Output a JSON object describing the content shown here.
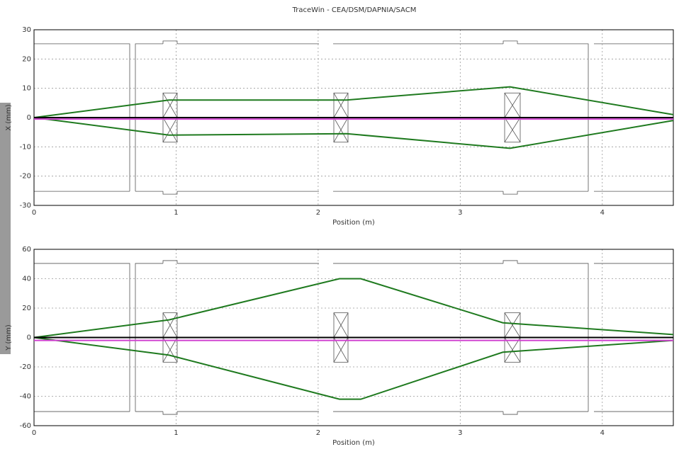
{
  "title": "TraceWin - CEA/DSM/DAPNIA/SACM",
  "chart_data": [
    {
      "type": "line",
      "x_label": "Position (m)",
      "y_label": "X (mm)",
      "xlim": [
        0,
        4.5
      ],
      "xticks": [
        0,
        1,
        2,
        3,
        4
      ],
      "ylim": [
        -30,
        30
      ],
      "yticks": [
        -30,
        -20,
        -10,
        0,
        10,
        20,
        30
      ],
      "grid": true,
      "x": [
        0,
        0.95,
        2.2,
        3.35,
        4.5
      ],
      "series": [
        {
          "color": "#1f7a1f",
          "values": [
            0,
            6,
            6,
            10.5,
            1
          ]
        },
        {
          "color": "#1f7a1f",
          "values": [
            0,
            -6,
            -5.5,
            -10.5,
            -1
          ]
        },
        {
          "color": "#000000",
          "values": [
            0,
            0,
            0,
            0,
            0
          ]
        },
        {
          "color": "#d040d0",
          "values": [
            -0.5,
            -0.5,
            -0.5,
            -0.5,
            -0.5
          ]
        }
      ]
    },
    {
      "type": "line",
      "x_label": "Position (m)",
      "y_label": "Y (mm)",
      "xlim": [
        0,
        4.5
      ],
      "xticks": [
        0,
        1,
        2,
        3,
        4
      ],
      "ylim": [
        -60,
        60
      ],
      "yticks": [
        -60,
        -40,
        -20,
        0,
        20,
        40,
        60
      ],
      "grid": true,
      "x": [
        0,
        0.95,
        2.15,
        2.3,
        3.3,
        4.5
      ],
      "series": [
        {
          "color": "#1f7a1f",
          "values": [
            0,
            12,
            40,
            40,
            10,
            2
          ]
        },
        {
          "color": "#1f7a1f",
          "values": [
            0,
            -12,
            -42,
            -42,
            -10,
            -2
          ]
        },
        {
          "color": "#000000",
          "values": [
            0,
            0,
            0,
            0,
            0,
            0
          ]
        },
        {
          "color": "#d040d0",
          "values": [
            -2,
            -2,
            -2,
            -2,
            -2,
            -2
          ]
        }
      ]
    }
  ]
}
